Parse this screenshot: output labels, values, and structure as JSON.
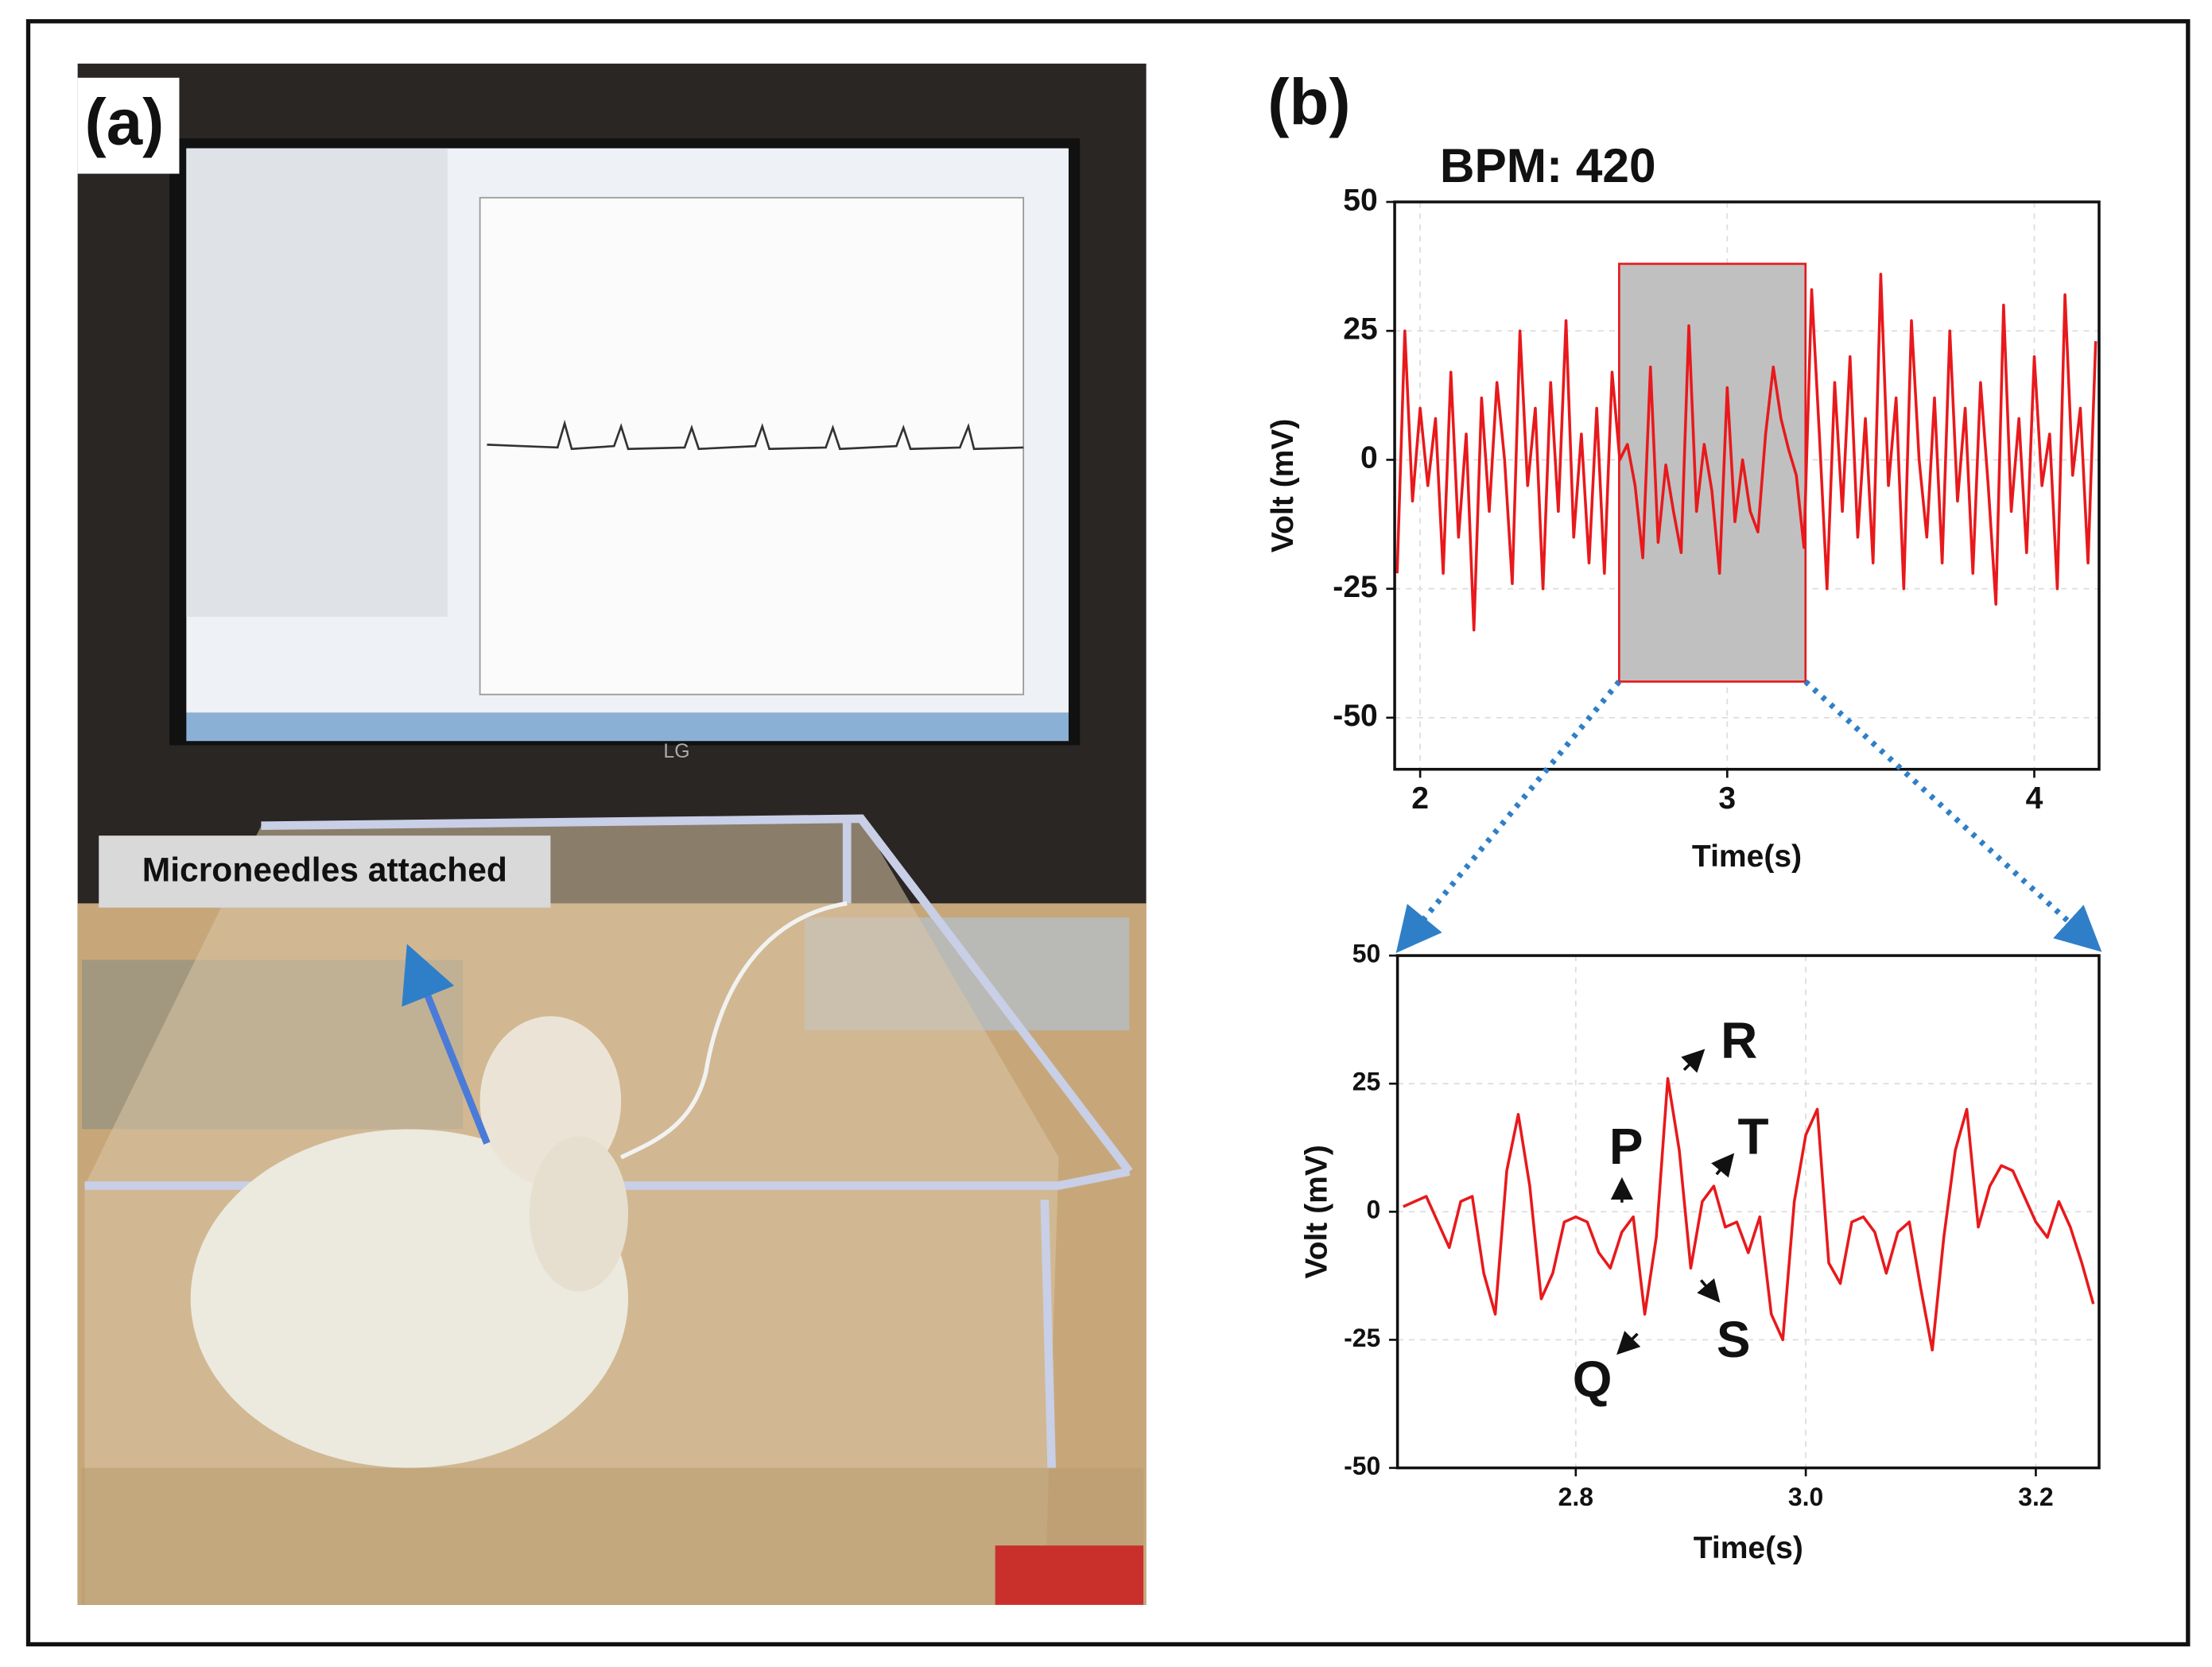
{
  "panel_labels": [
    "(a)",
    "(b)"
  ],
  "photo_annotation": "Microneedles attached",
  "chart_data": [
    {
      "type": "line",
      "title": "BPM: 420",
      "xlabel": "Time(s)",
      "ylabel": "Volt (mV)",
      "xlim": [
        1.917,
        4.211
      ],
      "xticks": [
        2,
        3,
        4
      ],
      "ylim": [
        -60,
        50
      ],
      "yticks": [
        -50,
        -25,
        0,
        25,
        50
      ],
      "grid": true,
      "color": "#e8191c",
      "highlight": {
        "xlim": [
          2.648,
          3.255
        ],
        "ylim": [
          -43,
          38
        ]
      },
      "x": [
        1.925,
        1.95,
        1.975,
        2.0,
        2.025,
        2.05,
        2.075,
        2.1,
        2.125,
        2.15,
        2.175,
        2.2,
        2.225,
        2.25,
        2.275,
        2.3,
        2.325,
        2.35,
        2.375,
        2.4,
        2.425,
        2.45,
        2.475,
        2.5,
        2.525,
        2.55,
        2.575,
        2.6,
        2.625,
        2.65,
        2.675,
        2.7,
        2.725,
        2.75,
        2.775,
        2.8,
        2.825,
        2.85,
        2.875,
        2.9,
        2.925,
        2.95,
        2.975,
        3.0,
        3.025,
        3.05,
        3.075,
        3.1,
        3.125,
        3.15,
        3.175,
        3.2,
        3.225,
        3.25,
        3.275,
        3.3,
        3.325,
        3.35,
        3.375,
        3.4,
        3.425,
        3.45,
        3.475,
        3.5,
        3.525,
        3.55,
        3.575,
        3.6,
        3.625,
        3.65,
        3.675,
        3.7,
        3.725,
        3.75,
        3.775,
        3.8,
        3.825,
        3.85,
        3.875,
        3.9,
        3.925,
        3.95,
        3.975,
        4.0,
        4.025,
        4.05,
        4.075,
        4.1,
        4.125,
        4.15,
        4.175,
        4.2
      ],
      "values": [
        -22,
        25,
        -8,
        10,
        -5,
        8,
        -22,
        17,
        -15,
        5,
        -33,
        12,
        -10,
        15,
        0,
        -24,
        25,
        -5,
        10,
        -25,
        15,
        -10,
        27,
        -15,
        5,
        -20,
        10,
        -22,
        17,
        0,
        3,
        -5,
        -19,
        18,
        -16,
        -1,
        -10,
        -18,
        26,
        -10,
        3,
        -6,
        -22,
        14,
        -12,
        0,
        -10,
        -14,
        5,
        18,
        8,
        2,
        -3,
        -17,
        33,
        5,
        -25,
        15,
        -10,
        20,
        -15,
        8,
        -20,
        36,
        -5,
        12,
        -25,
        27,
        0,
        -15,
        12,
        -20,
        25,
        -8,
        10,
        -22,
        15,
        -5,
        -28,
        30,
        -10,
        8,
        -18,
        20,
        -5,
        5,
        -25,
        32,
        -3,
        10,
        -20,
        23
      ]
    },
    {
      "type": "line",
      "xlabel": "Time(s)",
      "ylabel": "Volt (mV)",
      "xlim": [
        2.645,
        3.255
      ],
      "xticks": [
        2.8,
        {
          "value": 3,
          "label": "3.0"
        },
        3.2
      ],
      "ylim": [
        -50,
        50
      ],
      "yticks": [
        -50,
        -25,
        0,
        25,
        50
      ],
      "grid": true,
      "color": "#e8191c",
      "annotations": [
        "P",
        "Q",
        "R",
        "S",
        "T"
      ],
      "x": [
        2.65,
        2.66,
        2.67,
        2.68,
        2.69,
        2.7,
        2.71,
        2.72,
        2.73,
        2.74,
        2.75,
        2.76,
        2.77,
        2.78,
        2.79,
        2.8,
        2.81,
        2.82,
        2.83,
        2.84,
        2.85,
        2.86,
        2.87,
        2.88,
        2.89,
        2.9,
        2.91,
        2.92,
        2.93,
        2.94,
        2.95,
        2.96,
        2.97,
        2.98,
        2.99,
        3.0,
        3.01,
        3.02,
        3.03,
        3.04,
        3.05,
        3.06,
        3.07,
        3.08,
        3.09,
        3.1,
        3.11,
        3.12,
        3.13,
        3.14,
        3.15,
        3.16,
        3.17,
        3.18,
        3.19,
        3.2,
        3.21,
        3.22,
        3.23,
        3.24,
        3.25
      ],
      "values": [
        1,
        2,
        3,
        -2,
        -7,
        2,
        3,
        -12,
        -20,
        8,
        19,
        5,
        -17,
        -12,
        -2,
        -1,
        -2,
        -8,
        -11,
        -4,
        -1,
        -20,
        -5,
        26,
        12,
        -11,
        2,
        5,
        -3,
        -2,
        -8,
        -1,
        -20,
        -25,
        2,
        15,
        20,
        -10,
        -14,
        -2,
        -1,
        -4,
        -12,
        -4,
        -2,
        -15,
        -27,
        -5,
        12,
        20,
        -3,
        5,
        9,
        8,
        3,
        -2,
        -5,
        2,
        -3,
        -10,
        -18
      ]
    }
  ]
}
